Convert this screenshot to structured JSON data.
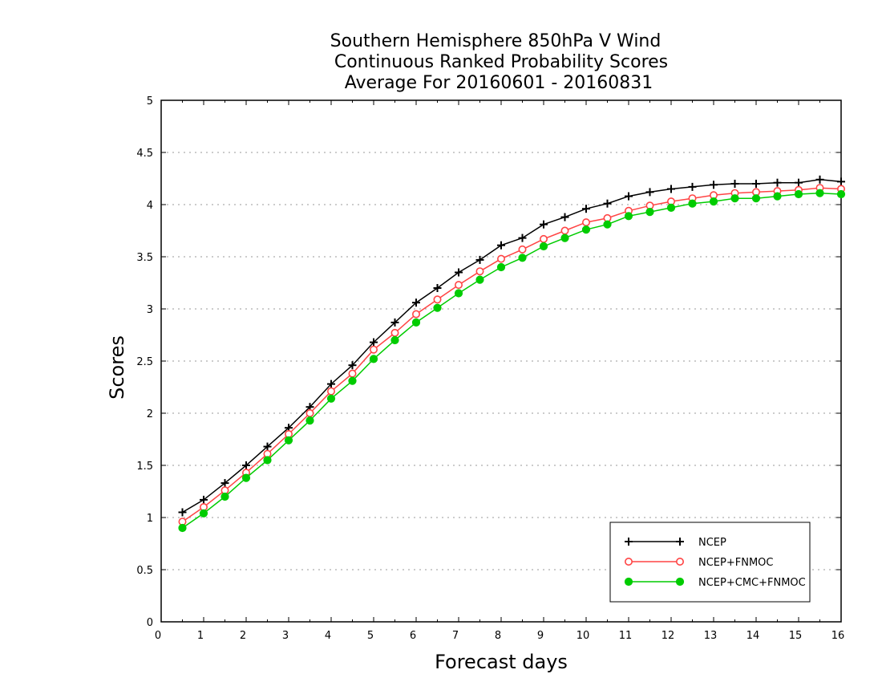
{
  "chart_data": {
    "type": "line",
    "title_lines": [
      "Southern Hemisphere 850hPa V Wind",
      "Continuous Ranked Probability Scores",
      "Average For 20160601 - 20160831"
    ],
    "xlabel": "Forecast days",
    "ylabel": "Scores",
    "xlim": [
      0,
      16
    ],
    "ylim": [
      0,
      5
    ],
    "x_ticks": [
      "0",
      "1",
      "2",
      "3",
      "4",
      "5",
      "6",
      "7",
      "8",
      "9",
      "10",
      "11",
      "12",
      "13",
      "14",
      "15",
      "16"
    ],
    "y_ticks": [
      "0",
      "0.5",
      "1",
      "1.5",
      "2",
      "2.5",
      "3",
      "3.5",
      "4",
      "4.5",
      "5"
    ],
    "grid": "horizontal-dotted",
    "legend_position": "bottom-right",
    "x": [
      0.5,
      1,
      1.5,
      2,
      2.5,
      3,
      3.5,
      4,
      4.5,
      5,
      5.5,
      6,
      6.5,
      7,
      7.5,
      8,
      8.5,
      9,
      9.5,
      10,
      10.5,
      11,
      11.5,
      12,
      12.5,
      13,
      13.5,
      14,
      14.5,
      15,
      15.5,
      16
    ],
    "series": [
      {
        "name": "NCEP",
        "color": "#000000",
        "marker": "plus",
        "values": [
          1.05,
          1.17,
          1.33,
          1.5,
          1.68,
          1.86,
          2.06,
          2.28,
          2.46,
          2.68,
          2.87,
          3.06,
          3.2,
          3.35,
          3.47,
          3.61,
          3.68,
          3.81,
          3.88,
          3.96,
          4.01,
          4.08,
          4.12,
          4.15,
          4.17,
          4.19,
          4.2,
          4.2,
          4.21,
          4.21,
          4.24,
          4.22
        ]
      },
      {
        "name": "NCEP+FNMOC",
        "color": "#ff4444",
        "marker": "open-circle",
        "values": [
          0.96,
          1.1,
          1.26,
          1.43,
          1.61,
          1.8,
          2.0,
          2.21,
          2.38,
          2.61,
          2.77,
          2.95,
          3.09,
          3.23,
          3.36,
          3.48,
          3.57,
          3.67,
          3.75,
          3.83,
          3.87,
          3.94,
          3.99,
          4.03,
          4.06,
          4.09,
          4.11,
          4.12,
          4.13,
          4.14,
          4.16,
          4.15
        ]
      },
      {
        "name": "NCEP+CMC+FNMOC",
        "color": "#00cc00",
        "marker": "filled-circle",
        "values": [
          0.9,
          1.04,
          1.2,
          1.38,
          1.55,
          1.74,
          1.93,
          2.14,
          2.31,
          2.52,
          2.7,
          2.87,
          3.01,
          3.15,
          3.28,
          3.4,
          3.49,
          3.6,
          3.68,
          3.76,
          3.81,
          3.89,
          3.93,
          3.97,
          4.01,
          4.03,
          4.06,
          4.06,
          4.08,
          4.1,
          4.11,
          4.1
        ]
      }
    ]
  }
}
